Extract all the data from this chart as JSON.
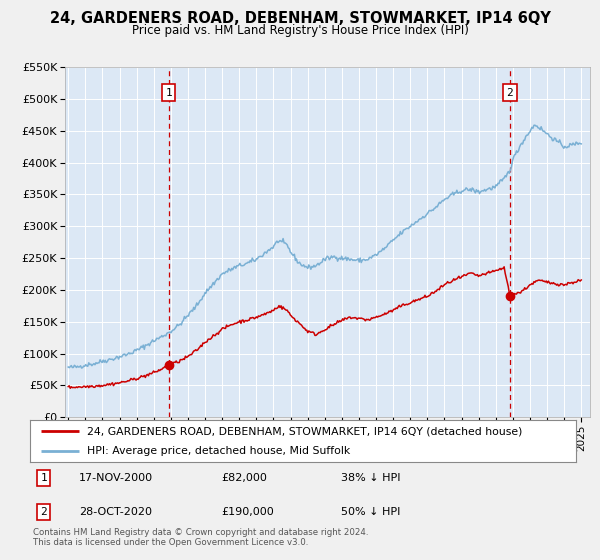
{
  "title": "24, GARDENERS ROAD, DEBENHAM, STOWMARKET, IP14 6QY",
  "subtitle": "Price paid vs. HM Land Registry's House Price Index (HPI)",
  "legend_line1": "24, GARDENERS ROAD, DEBENHAM, STOWMARKET, IP14 6QY (detached house)",
  "legend_line2": "HPI: Average price, detached house, Mid Suffolk",
  "annotation1_date": "17-NOV-2000",
  "annotation1_price": "£82,000",
  "annotation1_pct": "38% ↓ HPI",
  "annotation2_date": "28-OCT-2020",
  "annotation2_price": "£190,000",
  "annotation2_pct": "50% ↓ HPI",
  "footer1": "Contains HM Land Registry data © Crown copyright and database right 2024.",
  "footer2": "This data is licensed under the Open Government Licence v3.0.",
  "price_paid_color": "#cc0000",
  "hpi_color": "#7ab0d4",
  "vline_color": "#cc0000",
  "fig_bg_color": "#f0f0f0",
  "plot_bg_color": "#dce8f5",
  "ylim": [
    0,
    550000
  ],
  "yticks": [
    0,
    50000,
    100000,
    150000,
    200000,
    250000,
    300000,
    350000,
    400000,
    450000,
    500000,
    550000
  ],
  "ytick_labels": [
    "£0",
    "£50K",
    "£100K",
    "£150K",
    "£200K",
    "£250K",
    "£300K",
    "£350K",
    "£400K",
    "£450K",
    "£500K",
    "£550K"
  ],
  "sale1_x": 2000.88,
  "sale1_y": 82000,
  "sale2_x": 2020.83,
  "sale2_y": 190000,
  "xmin": 1994.8,
  "xmax": 2025.5,
  "hpi_keypoints": [
    [
      1995.0,
      78000
    ],
    [
      1995.5,
      79000
    ],
    [
      1996.0,
      82000
    ],
    [
      1996.5,
      84000
    ],
    [
      1997.0,
      88000
    ],
    [
      1997.5,
      91000
    ],
    [
      1998.0,
      95000
    ],
    [
      1998.5,
      99000
    ],
    [
      1999.0,
      105000
    ],
    [
      1999.5,
      112000
    ],
    [
      2000.0,
      120000
    ],
    [
      2000.5,
      127000
    ],
    [
      2001.0,
      135000
    ],
    [
      2001.5,
      145000
    ],
    [
      2002.0,
      160000
    ],
    [
      2002.5,
      175000
    ],
    [
      2003.0,
      195000
    ],
    [
      2003.5,
      210000
    ],
    [
      2004.0,
      225000
    ],
    [
      2004.5,
      232000
    ],
    [
      2005.0,
      238000
    ],
    [
      2005.5,
      242000
    ],
    [
      2006.0,
      248000
    ],
    [
      2006.5,
      258000
    ],
    [
      2007.0,
      268000
    ],
    [
      2007.3,
      278000
    ],
    [
      2007.8,
      270000
    ],
    [
      2008.0,
      260000
    ],
    [
      2008.5,
      242000
    ],
    [
      2009.0,
      235000
    ],
    [
      2009.5,
      238000
    ],
    [
      2010.0,
      248000
    ],
    [
      2010.5,
      252000
    ],
    [
      2011.0,
      250000
    ],
    [
      2011.5,
      248000
    ],
    [
      2012.0,
      246000
    ],
    [
      2012.5,
      248000
    ],
    [
      2013.0,
      255000
    ],
    [
      2013.5,
      265000
    ],
    [
      2014.0,
      278000
    ],
    [
      2014.5,
      290000
    ],
    [
      2015.0,
      300000
    ],
    [
      2015.5,
      310000
    ],
    [
      2016.0,
      320000
    ],
    [
      2016.5,
      330000
    ],
    [
      2017.0,
      342000
    ],
    [
      2017.5,
      350000
    ],
    [
      2018.0,
      356000
    ],
    [
      2018.5,
      358000
    ],
    [
      2019.0,
      354000
    ],
    [
      2019.5,
      358000
    ],
    [
      2020.0,
      362000
    ],
    [
      2020.5,
      375000
    ],
    [
      2020.83,
      388000
    ],
    [
      2021.0,
      405000
    ],
    [
      2021.5,
      430000
    ],
    [
      2022.0,
      450000
    ],
    [
      2022.3,
      460000
    ],
    [
      2022.8,
      450000
    ],
    [
      2023.0,
      445000
    ],
    [
      2023.5,
      435000
    ],
    [
      2024.0,
      425000
    ],
    [
      2024.5,
      428000
    ],
    [
      2025.0,
      432000
    ]
  ],
  "pp_keypoints": [
    [
      1995.0,
      47000
    ],
    [
      1995.5,
      47500
    ],
    [
      1996.0,
      48000
    ],
    [
      1996.5,
      49000
    ],
    [
      1997.0,
      50000
    ],
    [
      1997.5,
      52000
    ],
    [
      1998.0,
      54000
    ],
    [
      1998.5,
      57000
    ],
    [
      1999.0,
      61000
    ],
    [
      1999.5,
      65000
    ],
    [
      2000.0,
      70000
    ],
    [
      2000.5,
      76000
    ],
    [
      2000.88,
      82000
    ],
    [
      2001.0,
      83000
    ],
    [
      2001.5,
      88000
    ],
    [
      2002.0,
      95000
    ],
    [
      2002.5,
      105000
    ],
    [
      2003.0,
      118000
    ],
    [
      2003.5,
      128000
    ],
    [
      2004.0,
      138000
    ],
    [
      2004.5,
      145000
    ],
    [
      2005.0,
      150000
    ],
    [
      2005.5,
      153000
    ],
    [
      2006.0,
      157000
    ],
    [
      2006.5,
      162000
    ],
    [
      2007.0,
      168000
    ],
    [
      2007.3,
      175000
    ],
    [
      2007.8,
      168000
    ],
    [
      2008.0,
      160000
    ],
    [
      2008.5,
      148000
    ],
    [
      2009.0,
      135000
    ],
    [
      2009.5,
      130000
    ],
    [
      2010.0,
      138000
    ],
    [
      2010.5,
      145000
    ],
    [
      2011.0,
      152000
    ],
    [
      2011.5,
      157000
    ],
    [
      2012.0,
      155000
    ],
    [
      2012.5,
      153000
    ],
    [
      2013.0,
      157000
    ],
    [
      2013.5,
      162000
    ],
    [
      2014.0,
      168000
    ],
    [
      2014.5,
      175000
    ],
    [
      2015.0,
      180000
    ],
    [
      2015.5,
      185000
    ],
    [
      2016.0,
      190000
    ],
    [
      2016.5,
      198000
    ],
    [
      2017.0,
      208000
    ],
    [
      2017.5,
      215000
    ],
    [
      2018.0,
      220000
    ],
    [
      2018.5,
      226000
    ],
    [
      2019.0,
      222000
    ],
    [
      2019.5,
      226000
    ],
    [
      2020.0,
      230000
    ],
    [
      2020.5,
      235000
    ],
    [
      2020.83,
      190000
    ],
    [
      2021.0,
      193000
    ],
    [
      2021.5,
      197000
    ],
    [
      2022.0,
      208000
    ],
    [
      2022.5,
      215000
    ],
    [
      2023.0,
      212000
    ],
    [
      2023.5,
      210000
    ],
    [
      2024.0,
      208000
    ],
    [
      2024.5,
      212000
    ],
    [
      2025.0,
      215000
    ]
  ]
}
